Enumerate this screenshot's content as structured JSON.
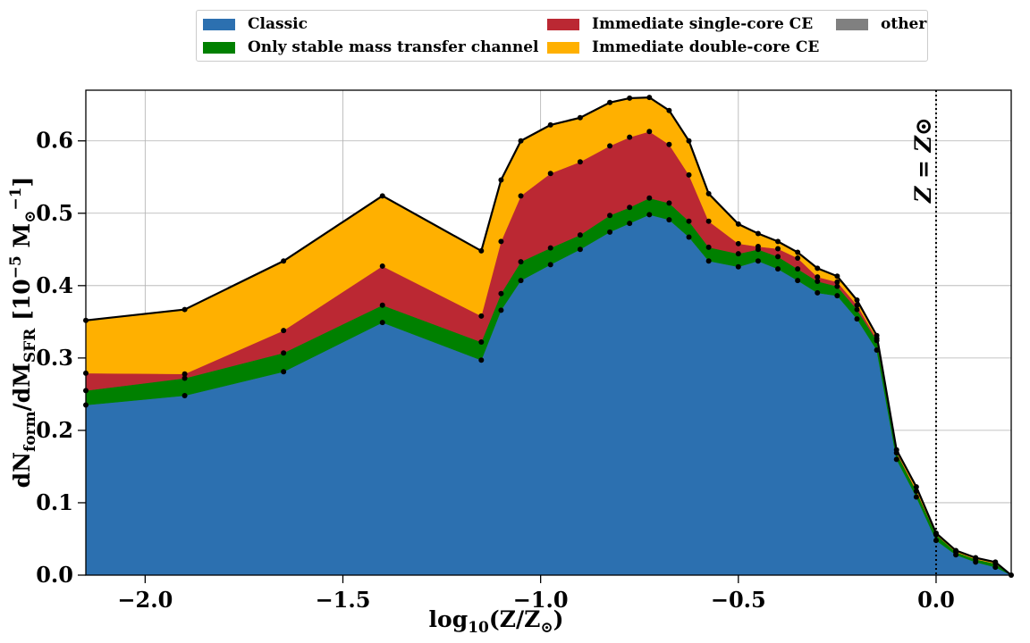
{
  "chart_data": {
    "type": "area",
    "stacked": true,
    "xlabel": "log10(Z/Z⊙)",
    "ylabel": "dNform/dMSFR  [10−5 M⊙−1]",
    "xlim": [
      -2.15,
      0.19
    ],
    "ylim": [
      0,
      0.67
    ],
    "grid": true,
    "legend_placement": "top-center, outside",
    "x_ticks": [
      "−2.0",
      "−1.5",
      "−1.0",
      "−0.5",
      "0.0"
    ],
    "x_tick_values": [
      -2.0,
      -1.5,
      -1.0,
      -0.5,
      0.0
    ],
    "y_ticks": [
      "0.0",
      "0.1",
      "0.2",
      "0.3",
      "0.4",
      "0.5",
      "0.6"
    ],
    "y_tick_values": [
      0.0,
      0.1,
      0.2,
      0.3,
      0.4,
      0.5,
      0.6
    ],
    "annotation": {
      "text": "Z = Z⊙",
      "x": 0.0
    },
    "x": [
      -2.15,
      -1.9,
      -1.65,
      -1.4,
      -1.15,
      -1.1,
      -1.05,
      -0.975,
      -0.9,
      -0.825,
      -0.775,
      -0.725,
      -0.675,
      -0.625,
      -0.575,
      -0.5,
      -0.45,
      -0.4,
      -0.35,
      -0.3,
      -0.25,
      -0.2,
      -0.15,
      -0.1,
      -0.05,
      0.0,
      0.05,
      0.1,
      0.15,
      0.19
    ],
    "series": [
      {
        "name": "Classic",
        "color": "#2c70b0",
        "values": [
          0.235,
          0.248,
          0.281,
          0.349,
          0.297,
          0.366,
          0.407,
          0.429,
          0.45,
          0.474,
          0.486,
          0.498,
          0.491,
          0.467,
          0.434,
          0.426,
          0.434,
          0.423,
          0.407,
          0.39,
          0.386,
          0.354,
          0.311,
          0.16,
          0.108,
          0.048,
          0.028,
          0.018,
          0.011,
          0.0
        ]
      },
      {
        "name": "Only stable mass transfer channel",
        "color": "#008000",
        "values": [
          0.02,
          0.024,
          0.026,
          0.024,
          0.025,
          0.023,
          0.026,
          0.023,
          0.02,
          0.023,
          0.022,
          0.023,
          0.023,
          0.022,
          0.019,
          0.018,
          0.016,
          0.017,
          0.016,
          0.016,
          0.013,
          0.013,
          0.013,
          0.009,
          0.008,
          0.008,
          0.004,
          0.004,
          0.005,
          0.0
        ]
      },
      {
        "name": "Immediate single-core CE",
        "color": "#bb2833",
        "values": [
          0.024,
          0.006,
          0.031,
          0.054,
          0.036,
          0.072,
          0.091,
          0.103,
          0.101,
          0.096,
          0.097,
          0.092,
          0.081,
          0.064,
          0.036,
          0.014,
          0.004,
          0.011,
          0.015,
          0.006,
          0.006,
          0.006,
          0.003,
          0.001,
          0.001,
          0.0,
          0.0,
          0.0,
          0.0,
          0.0
        ]
      },
      {
        "name": "Immediate double-core CE",
        "color": "#ffb000",
        "values": [
          0.073,
          0.089,
          0.096,
          0.097,
          0.09,
          0.085,
          0.076,
          0.067,
          0.061,
          0.06,
          0.054,
          0.047,
          0.047,
          0.047,
          0.038,
          0.027,
          0.018,
          0.01,
          0.008,
          0.012,
          0.008,
          0.007,
          0.004,
          0.003,
          0.005,
          0.002,
          0.002,
          0.002,
          0.002,
          0.0
        ]
      },
      {
        "name": "other",
        "color": "#808080",
        "values": [
          0.0,
          0.0,
          0.0,
          0.0,
          0.0,
          0.0,
          0.0,
          0.0,
          0.0,
          0.0,
          0.0,
          0.0,
          0.0,
          0.0,
          0.0,
          0.0,
          0.0,
          0.0,
          0.0,
          0.0,
          0.0,
          0.0,
          0.0,
          0.0,
          0.0,
          0.0,
          0.0,
          0.0,
          0.0,
          0.0
        ]
      }
    ]
  }
}
